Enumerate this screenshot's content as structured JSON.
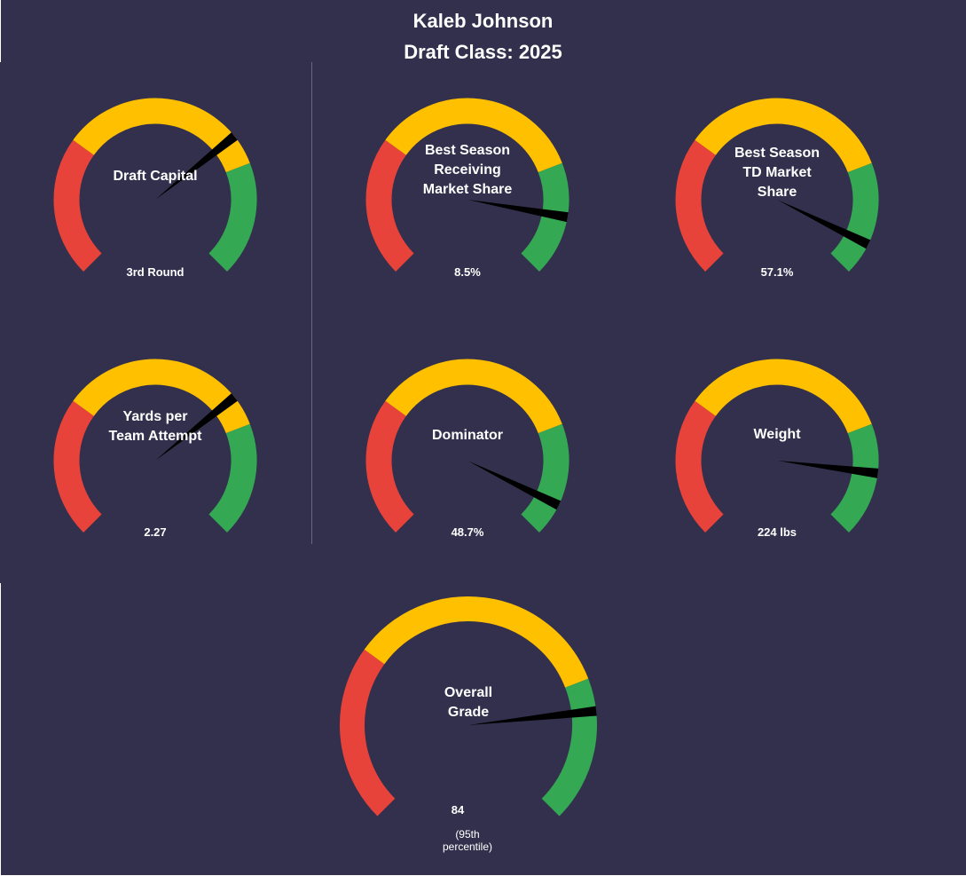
{
  "header": {
    "line1": "Kaleb Johnson",
    "line2": "Draft Class: 2025"
  },
  "colors": {
    "background": "#33304d",
    "red": "#e8433a",
    "yellow": "#ffc000",
    "green": "#34a853",
    "needle": "#000000",
    "text": "#ffffff"
  },
  "chart_data": [
    {
      "type": "gauge",
      "title": [
        "Draft Capital"
      ],
      "value_label": "3rd Round",
      "needle_fraction": 0.69
    },
    {
      "type": "gauge",
      "title": [
        "Best Season",
        "Receiving",
        "Market Share"
      ],
      "value_label": "8.5%",
      "needle_fraction": 0.87
    },
    {
      "type": "gauge",
      "title": [
        "Best Season",
        "TD Market",
        "Share"
      ],
      "value_label": "57.1%",
      "needle_fraction": 0.93
    },
    {
      "type": "gauge",
      "title": [
        "Yards per",
        "Team Attempt"
      ],
      "value_label": "2.27",
      "needle_fraction": 0.69
    },
    {
      "type": "gauge",
      "title": [
        "Dominator"
      ],
      "value_label": "48.7%",
      "needle_fraction": 0.93
    },
    {
      "type": "gauge",
      "title": [
        "Weight"
      ],
      "value_label": "224 lbs",
      "needle_fraction": 0.86
    },
    {
      "type": "gauge",
      "title": [
        "Overall",
        "Grade"
      ],
      "value_label": "84",
      "note": [
        "(95th",
        "percentile)"
      ],
      "needle_fraction": 0.81
    }
  ]
}
